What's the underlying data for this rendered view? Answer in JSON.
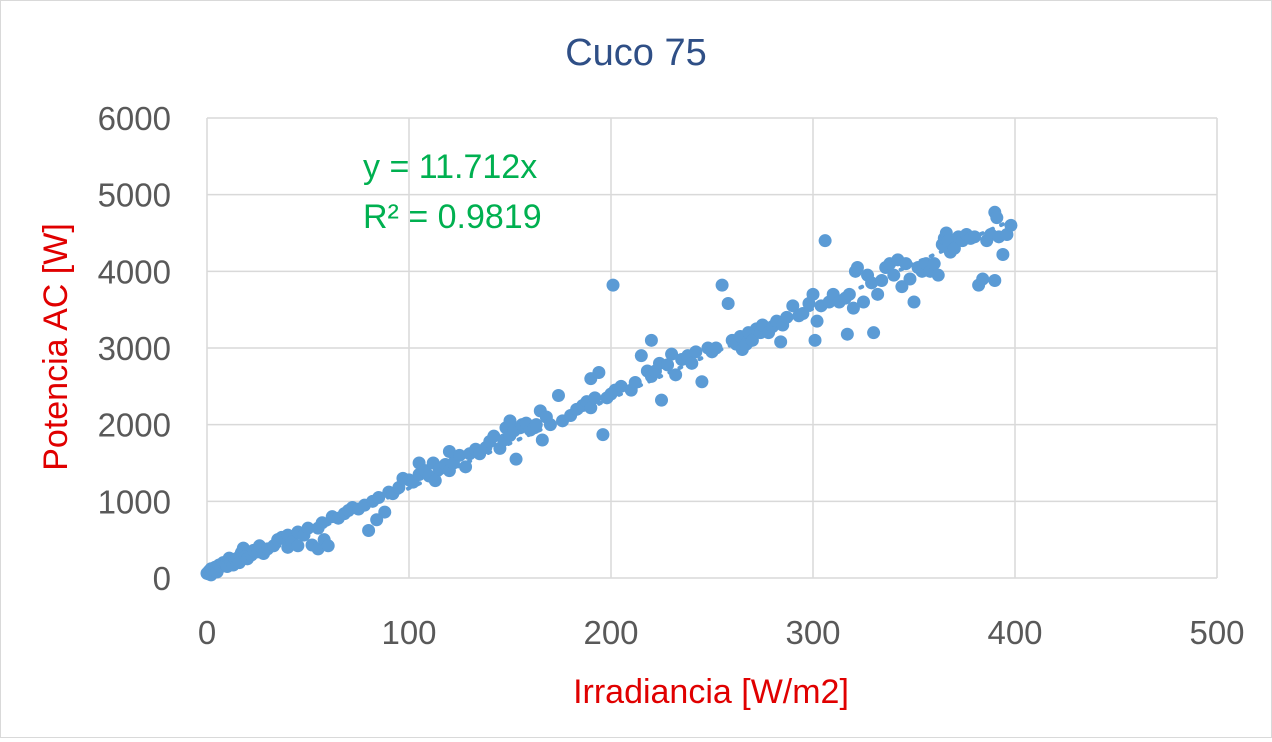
{
  "chart_data": {
    "type": "scatter",
    "title": "Cuco 75",
    "xlabel": "Irradiancia [W/m2]",
    "ylabel": "Potencia AC [W]",
    "xlim": [
      0,
      500
    ],
    "ylim": [
      0,
      6000
    ],
    "x_ticks": [
      "0",
      "100",
      "200",
      "300",
      "400",
      "500"
    ],
    "y_ticks": [
      "0",
      "1000",
      "2000",
      "3000",
      "4000",
      "5000",
      "6000"
    ],
    "grid": true,
    "legend": "none",
    "colors": {
      "title": "#2f4f86",
      "axis_label": "#e00000",
      "tick": "#595959",
      "gridline": "#d9d9d9",
      "points": "#5b9bd5",
      "trendline": "#5b9bd5",
      "equation": "#00b050"
    },
    "trendline": {
      "type": "linear",
      "slope": 11.712,
      "intercept": 0,
      "equation_text": "y = 11.712x",
      "r2_text": "R² = 0.9819"
    },
    "series": [
      {
        "points": [
          [
            0,
            60
          ],
          [
            1,
            90
          ],
          [
            2,
            120
          ],
          [
            2,
            40
          ],
          [
            3,
            100
          ],
          [
            4,
            140
          ],
          [
            5,
            130
          ],
          [
            5,
            80
          ],
          [
            6,
            170
          ],
          [
            7,
            150
          ],
          [
            8,
            200
          ],
          [
            9,
            190
          ],
          [
            10,
            220
          ],
          [
            10,
            150
          ],
          [
            11,
            260
          ],
          [
            12,
            210
          ],
          [
            13,
            170
          ],
          [
            14,
            240
          ],
          [
            15,
            260
          ],
          [
            16,
            200
          ],
          [
            17,
            330
          ],
          [
            18,
            390
          ],
          [
            19,
            280
          ],
          [
            20,
            250
          ],
          [
            22,
            300
          ],
          [
            23,
            360
          ],
          [
            25,
            340
          ],
          [
            26,
            420
          ],
          [
            28,
            320
          ],
          [
            30,
            380
          ],
          [
            33,
            420
          ],
          [
            35,
            500
          ],
          [
            37,
            530
          ],
          [
            40,
            560
          ],
          [
            40,
            400
          ],
          [
            42,
            470
          ],
          [
            45,
            600
          ],
          [
            45,
            420
          ],
          [
            48,
            560
          ],
          [
            50,
            650
          ],
          [
            52,
            430
          ],
          [
            55,
            650
          ],
          [
            55,
            380
          ],
          [
            57,
            720
          ],
          [
            58,
            500
          ],
          [
            60,
            420
          ],
          [
            62,
            800
          ],
          [
            65,
            780
          ],
          [
            68,
            840
          ],
          [
            70,
            880
          ],
          [
            72,
            920
          ],
          [
            75,
            900
          ],
          [
            78,
            950
          ],
          [
            80,
            620
          ],
          [
            82,
            1000
          ],
          [
            84,
            760
          ],
          [
            85,
            1050
          ],
          [
            88,
            860
          ],
          [
            90,
            1120
          ],
          [
            92,
            1100
          ],
          [
            95,
            1180
          ],
          [
            97,
            1300
          ],
          [
            100,
            1280
          ],
          [
            102,
            1250
          ],
          [
            105,
            1350
          ],
          [
            105,
            1500
          ],
          [
            108,
            1400
          ],
          [
            110,
            1330
          ],
          [
            112,
            1500
          ],
          [
            113,
            1270
          ],
          [
            115,
            1420
          ],
          [
            118,
            1480
          ],
          [
            120,
            1400
          ],
          [
            120,
            1650
          ],
          [
            122,
            1500
          ],
          [
            125,
            1600
          ],
          [
            128,
            1450
          ],
          [
            130,
            1620
          ],
          [
            133,
            1680
          ],
          [
            135,
            1620
          ],
          [
            138,
            1700
          ],
          [
            140,
            1780
          ],
          [
            142,
            1850
          ],
          [
            145,
            1690
          ],
          [
            147,
            1800
          ],
          [
            148,
            1960
          ],
          [
            150,
            2050
          ],
          [
            150,
            1860
          ],
          [
            152,
            1920
          ],
          [
            153,
            1550
          ],
          [
            155,
            1960
          ],
          [
            156,
            2000
          ],
          [
            158,
            2020
          ],
          [
            160,
            1930
          ],
          [
            162,
            1960
          ],
          [
            163,
            2000
          ],
          [
            165,
            2180
          ],
          [
            166,
            1800
          ],
          [
            168,
            2100
          ],
          [
            170,
            2000
          ],
          [
            174,
            2380
          ],
          [
            176,
            2050
          ],
          [
            180,
            2120
          ],
          [
            183,
            2200
          ],
          [
            186,
            2250
          ],
          [
            188,
            2300
          ],
          [
            190,
            2600
          ],
          [
            190,
            2220
          ],
          [
            192,
            2350
          ],
          [
            194,
            2680
          ],
          [
            196,
            1870
          ],
          [
            198,
            2350
          ],
          [
            200,
            2400
          ],
          [
            201,
            3820
          ],
          [
            202,
            2450
          ],
          [
            205,
            2500
          ],
          [
            210,
            2450
          ],
          [
            212,
            2550
          ],
          [
            215,
            2900
          ],
          [
            218,
            2700
          ],
          [
            220,
            3100
          ],
          [
            220,
            2630
          ],
          [
            222,
            2700
          ],
          [
            224,
            2800
          ],
          [
            225,
            2320
          ],
          [
            228,
            2780
          ],
          [
            230,
            2920
          ],
          [
            232,
            2650
          ],
          [
            235,
            2850
          ],
          [
            238,
            2900
          ],
          [
            240,
            2800
          ],
          [
            242,
            2950
          ],
          [
            245,
            2560
          ],
          [
            248,
            3000
          ],
          [
            250,
            2950
          ],
          [
            252,
            3000
          ],
          [
            255,
            3820
          ],
          [
            258,
            3580
          ],
          [
            260,
            3100
          ],
          [
            262,
            3050
          ],
          [
            264,
            3150
          ],
          [
            265,
            2980
          ],
          [
            267,
            3050
          ],
          [
            268,
            3200
          ],
          [
            270,
            3100
          ],
          [
            272,
            3250
          ],
          [
            274,
            3200
          ],
          [
            275,
            3300
          ],
          [
            278,
            3200
          ],
          [
            280,
            3280
          ],
          [
            282,
            3350
          ],
          [
            284,
            3080
          ],
          [
            285,
            3300
          ],
          [
            287,
            3400
          ],
          [
            290,
            3550
          ],
          [
            293,
            3420
          ],
          [
            295,
            3450
          ],
          [
            298,
            3580
          ],
          [
            300,
            3700
          ],
          [
            301,
            3100
          ],
          [
            302,
            3350
          ],
          [
            304,
            3550
          ],
          [
            306,
            4400
          ],
          [
            308,
            3600
          ],
          [
            310,
            3700
          ],
          [
            313,
            3600
          ],
          [
            316,
            3650
          ],
          [
            317,
            3180
          ],
          [
            318,
            3700
          ],
          [
            320,
            3520
          ],
          [
            321,
            4000
          ],
          [
            322,
            4050
          ],
          [
            325,
            3600
          ],
          [
            327,
            3950
          ],
          [
            329,
            3850
          ],
          [
            330,
            3200
          ],
          [
            332,
            3700
          ],
          [
            334,
            3880
          ],
          [
            336,
            4050
          ],
          [
            338,
            4100
          ],
          [
            340,
            3950
          ],
          [
            342,
            4150
          ],
          [
            344,
            3800
          ],
          [
            346,
            4100
          ],
          [
            348,
            3900
          ],
          [
            350,
            3600
          ],
          [
            352,
            4050
          ],
          [
            354,
            4000
          ],
          [
            356,
            4100
          ],
          [
            358,
            4000
          ],
          [
            360,
            4100
          ],
          [
            362,
            3950
          ],
          [
            364,
            4350
          ],
          [
            365,
            4430
          ],
          [
            366,
            4500
          ],
          [
            367,
            4400
          ],
          [
            368,
            4250
          ],
          [
            370,
            4300
          ],
          [
            372,
            4450
          ],
          [
            374,
            4400
          ],
          [
            376,
            4480
          ],
          [
            378,
            4430
          ],
          [
            380,
            4450
          ],
          [
            382,
            3820
          ],
          [
            384,
            3900
          ],
          [
            386,
            4400
          ],
          [
            388,
            4480
          ],
          [
            390,
            3880
          ],
          [
            390,
            4770
          ],
          [
            391,
            4700
          ],
          [
            392,
            4450
          ],
          [
            394,
            4220
          ],
          [
            396,
            4480
          ],
          [
            398,
            4600
          ]
        ]
      }
    ]
  }
}
